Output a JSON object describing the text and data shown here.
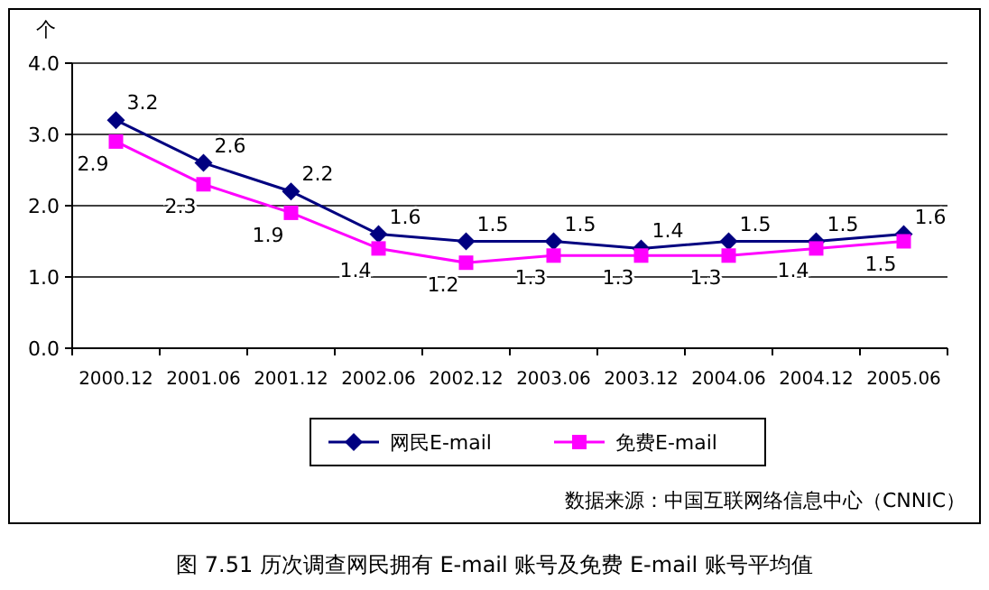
{
  "chart_data": {
    "type": "line",
    "title": "图 7.51 历次调查网民拥有 E-mail 账号及免费 E-mail 账号平均值",
    "ylabel": "个",
    "categories": [
      "2000.12",
      "2001.06",
      "2001.12",
      "2002.06",
      "2002.12",
      "2003.06",
      "2003.12",
      "2004.06",
      "2004.12",
      "2005.06"
    ],
    "series": [
      {
        "name": "网民E-mail",
        "color": "#000080",
        "marker": "diamond",
        "values": [
          3.2,
          2.6,
          2.2,
          1.6,
          1.5,
          1.5,
          1.4,
          1.5,
          1.5,
          1.6
        ]
      },
      {
        "name": "免费E-mail",
        "color": "#ff00ff",
        "marker": "square",
        "values": [
          2.9,
          2.3,
          1.9,
          1.4,
          1.2,
          1.3,
          1.3,
          1.3,
          1.4,
          1.5
        ]
      }
    ],
    "ylim": [
      0,
      4
    ],
    "yticks": [
      {
        "value": 0,
        "label": "0.0"
      },
      {
        "value": 1,
        "label": "1.0"
      },
      {
        "value": 2,
        "label": "2.0"
      },
      {
        "value": 3,
        "label": "3.0"
      },
      {
        "value": 4,
        "label": "4.0"
      }
    ],
    "grid": "y",
    "legend": "bottom",
    "data_labels": true,
    "annotations": [
      "数据来源：中国互联网络信息中心（CNNIC）"
    ]
  }
}
